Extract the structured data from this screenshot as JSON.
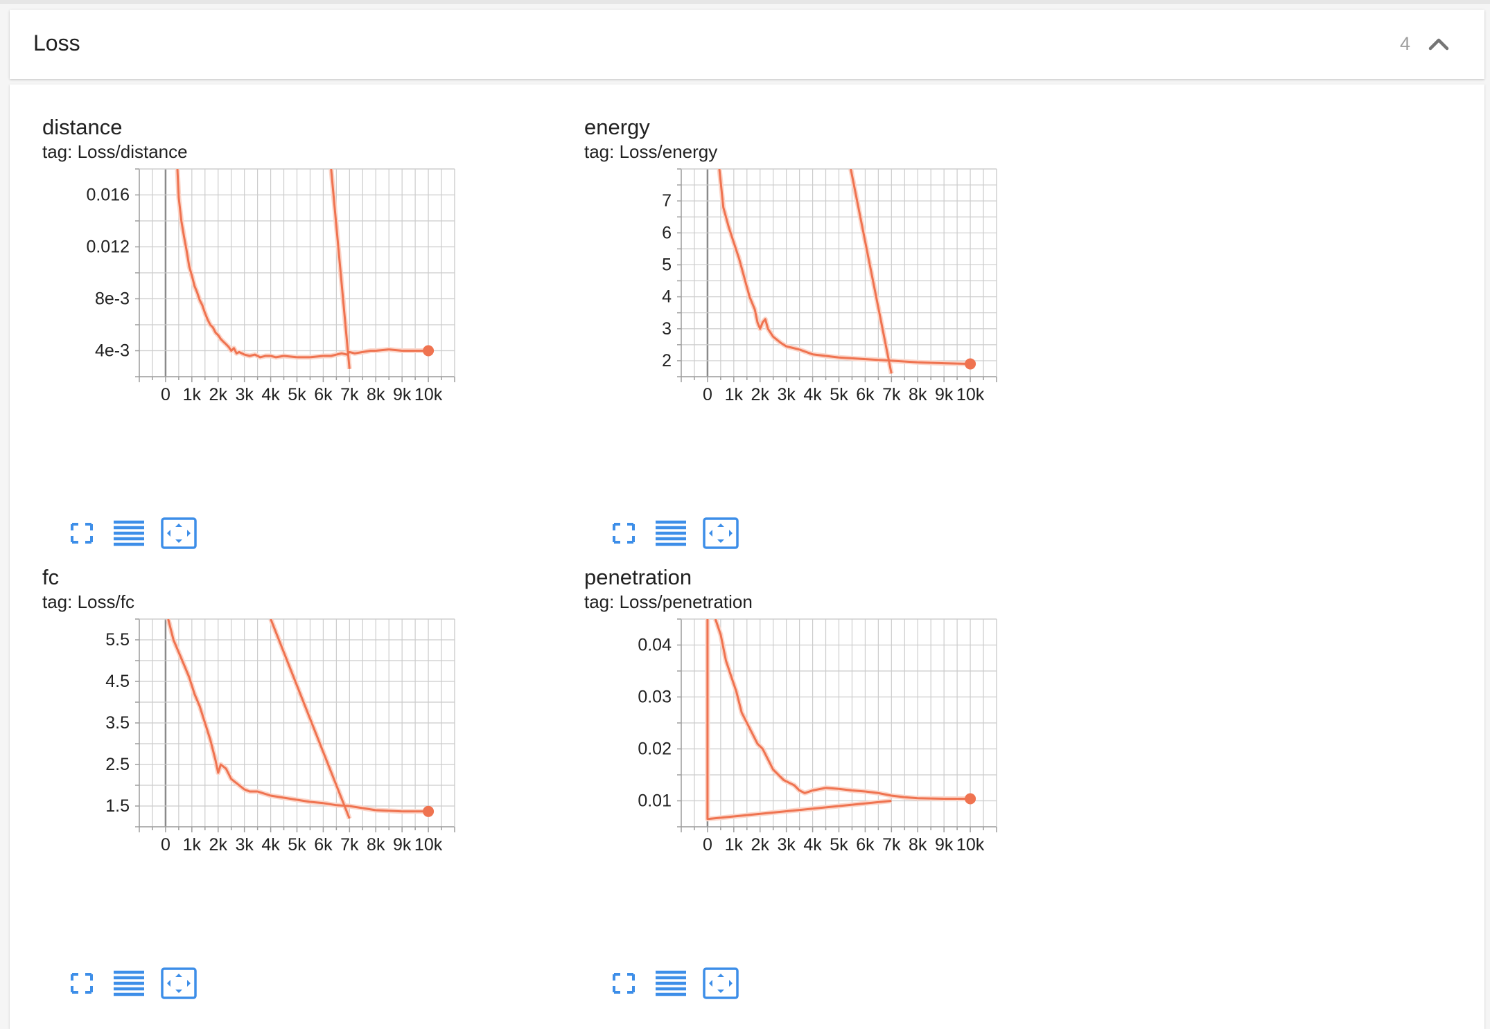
{
  "section": {
    "title": "Loss",
    "count": "4",
    "collapse_icon": "chevron-up-icon"
  },
  "colors": {
    "line": "#ef7350",
    "line_raw": "#fbd6ca",
    "grid": "#cccccc",
    "axis": "#9e9e9e",
    "button": "#3d8ee8"
  },
  "charts": [
    {
      "title": "distance",
      "tag": "tag: Loss/distance",
      "buttons": {
        "fullscreen": "fullscreen-icon",
        "lines": "toggle-log-scale-icon",
        "fit": "fit-domain-icon"
      },
      "chart_data": {
        "type": "line",
        "x_ticks": [
          0,
          1000,
          2000,
          3000,
          4000,
          5000,
          6000,
          7000,
          8000,
          9000,
          10000
        ],
        "x_tick_labels": [
          "0",
          "1k",
          "2k",
          "3k",
          "4k",
          "5k",
          "6k",
          "7k",
          "8k",
          "9k",
          "10k"
        ],
        "y_ticks": [
          0.004,
          0.008,
          0.012,
          0.016
        ],
        "y_tick_labels": [
          "4e-3",
          "8e-3",
          "0.012",
          "0.016"
        ],
        "xlim": [
          -1000,
          11000
        ],
        "ylim": [
          0.002,
          0.018
        ],
        "grid": true,
        "series": [
          {
            "x": [
              450,
              500,
              600,
              700,
              800,
              900,
              1000,
              1100,
              1200,
              1300,
              1400,
              1500,
              1600,
              1700,
              1800,
              1900,
              2000,
              2100,
              2200,
              2300,
              2400,
              2500,
              2600,
              2700,
              2800,
              3000,
              3200,
              3400,
              3600,
              3800,
              4000,
              4200,
              4500,
              5000,
              5500,
              6000,
              6300,
              6500,
              6700,
              6900,
              7000,
              7200,
              7500,
              7800,
              8000,
              8500,
              9000,
              9500,
              10000
            ],
            "y": [
              0.018,
              0.0158,
              0.014,
              0.0128,
              0.0117,
              0.0105,
              0.0098,
              0.009,
              0.0085,
              0.0079,
              0.0075,
              0.0069,
              0.0064,
              0.006,
              0.0058,
              0.0054,
              0.0052,
              0.0049,
              0.0047,
              0.0045,
              0.0043,
              0.004,
              0.0042,
              0.0038,
              0.0039,
              0.0037,
              0.0036,
              0.0037,
              0.0035,
              0.0036,
              0.0036,
              0.0035,
              0.0036,
              0.0035,
              0.0035,
              0.0036,
              0.0036,
              0.0037,
              0.0038,
              0.0037,
              0.0039,
              0.0038,
              0.0039,
              0.004,
              0.004,
              0.0041,
              0.004,
              0.004,
              0.004
            ]
          },
          {
            "x": [
              6300,
              7000
            ],
            "y": [
              0.018,
              0.0026
            ]
          }
        ],
        "last_point": {
          "x": 10000,
          "y": 0.004
        }
      }
    },
    {
      "title": "energy",
      "tag": "tag: Loss/energy",
      "buttons": {
        "fullscreen": "fullscreen-icon",
        "lines": "toggle-log-scale-icon",
        "fit": "fit-domain-icon"
      },
      "chart_data": {
        "type": "line",
        "x_ticks": [
          0,
          1000,
          2000,
          3000,
          4000,
          5000,
          6000,
          7000,
          8000,
          9000,
          10000
        ],
        "x_tick_labels": [
          "0",
          "1k",
          "2k",
          "3k",
          "4k",
          "5k",
          "6k",
          "7k",
          "8k",
          "9k",
          "10k"
        ],
        "y_ticks": [
          2,
          3,
          4,
          5,
          6,
          7
        ],
        "y_tick_labels": [
          "2",
          "3",
          "4",
          "5",
          "6",
          "7"
        ],
        "xlim": [
          -1000,
          11000
        ],
        "ylim": [
          1.5,
          8
        ],
        "grid": true,
        "series": [
          {
            "x": [
              450,
              600,
              800,
              1000,
              1200,
              1400,
              1600,
              1800,
              1900,
              2000,
              2100,
              2200,
              2300,
              2500,
              2800,
              3000,
              3500,
              4000,
              4500,
              5000,
              6000,
              7000,
              8000,
              9000,
              10000
            ],
            "y": [
              8,
              6.8,
              6.2,
              5.7,
              5.2,
              4.6,
              4.0,
              3.6,
              3.2,
              3.0,
              3.2,
              3.3,
              3.0,
              2.75,
              2.55,
              2.45,
              2.35,
              2.2,
              2.15,
              2.1,
              2.05,
              2.0,
              1.95,
              1.92,
              1.9
            ]
          },
          {
            "x": [
              5450,
              7000
            ],
            "y": [
              8,
              1.6
            ]
          }
        ],
        "last_point": {
          "x": 10000,
          "y": 1.9
        }
      }
    },
    {
      "title": "fc",
      "tag": "tag: Loss/fc",
      "buttons": {
        "fullscreen": "fullscreen-icon",
        "lines": "toggle-log-scale-icon",
        "fit": "fit-domain-icon"
      },
      "chart_data": {
        "type": "line",
        "x_ticks": [
          0,
          1000,
          2000,
          3000,
          4000,
          5000,
          6000,
          7000,
          8000,
          9000,
          10000
        ],
        "x_tick_labels": [
          "0",
          "1k",
          "2k",
          "3k",
          "4k",
          "5k",
          "6k",
          "7k",
          "8k",
          "9k",
          "10k"
        ],
        "y_ticks": [
          1.5,
          2.5,
          3.5,
          4.5,
          5.5
        ],
        "y_tick_labels": [
          "1.5",
          "2.5",
          "3.5",
          "4.5",
          "5.5"
        ],
        "xlim": [
          -1000,
          11000
        ],
        "ylim": [
          1,
          6
        ],
        "grid": true,
        "series": [
          {
            "x": [
              100,
              300,
              500,
              700,
              900,
              1100,
              1300,
              1500,
              1700,
              1900,
              2000,
              2100,
              2300,
              2500,
              2800,
              3000,
              3200,
              3500,
              4000,
              4500,
              5000,
              5500,
              6000,
              6500,
              7000,
              7500,
              8000,
              9000,
              10000
            ],
            "y": [
              6.0,
              5.5,
              5.2,
              4.9,
              4.6,
              4.2,
              3.9,
              3.5,
              3.1,
              2.6,
              2.3,
              2.5,
              2.4,
              2.15,
              2.0,
              1.9,
              1.85,
              1.85,
              1.75,
              1.7,
              1.65,
              1.6,
              1.57,
              1.52,
              1.5,
              1.45,
              1.4,
              1.37,
              1.37
            ]
          },
          {
            "x": [
              4000,
              7000
            ],
            "y": [
              6.0,
              1.2
            ]
          }
        ],
        "last_point": {
          "x": 10000,
          "y": 1.37
        }
      }
    },
    {
      "title": "penetration",
      "tag": "tag: Loss/penetration",
      "buttons": {
        "fullscreen": "fullscreen-icon",
        "lines": "toggle-log-scale-icon",
        "fit": "fit-domain-icon"
      },
      "chart_data": {
        "type": "line",
        "x_ticks": [
          0,
          1000,
          2000,
          3000,
          4000,
          5000,
          6000,
          7000,
          8000,
          9000,
          10000
        ],
        "x_tick_labels": [
          "0",
          "1k",
          "2k",
          "3k",
          "4k",
          "5k",
          "6k",
          "7k",
          "8k",
          "9k",
          "10k"
        ],
        "y_ticks": [
          0.01,
          0.02,
          0.03,
          0.04
        ],
        "y_tick_labels": [
          "0.01",
          "0.02",
          "0.03",
          "0.04"
        ],
        "xlim": [
          -1000,
          11000
        ],
        "ylim": [
          0.005,
          0.045
        ],
        "grid": true,
        "series": [
          {
            "x": [
              300,
              500,
              700,
              900,
              1100,
              1300,
              1500,
              1700,
              1900,
              2100,
              2300,
              2500,
              2700,
              2900,
              3100,
              3300,
              3500,
              3700,
              4000,
              4500,
              5000,
              5500,
              6000,
              6500,
              7000,
              7500,
              8000,
              9000,
              10000
            ],
            "y": [
              0.045,
              0.042,
              0.037,
              0.034,
              0.031,
              0.027,
              0.025,
              0.023,
              0.021,
              0.02,
              0.018,
              0.016,
              0.015,
              0.014,
              0.0135,
              0.013,
              0.012,
              0.0115,
              0.012,
              0.0125,
              0.0123,
              0.012,
              0.0118,
              0.0115,
              0.011,
              0.0107,
              0.0105,
              0.0104,
              0.0104
            ]
          },
          {
            "x": [
              0,
              0,
              7000
            ],
            "y": [
              0.045,
              0.0065,
              0.01
            ]
          }
        ],
        "last_point": {
          "x": 10000,
          "y": 0.0104
        }
      }
    }
  ]
}
